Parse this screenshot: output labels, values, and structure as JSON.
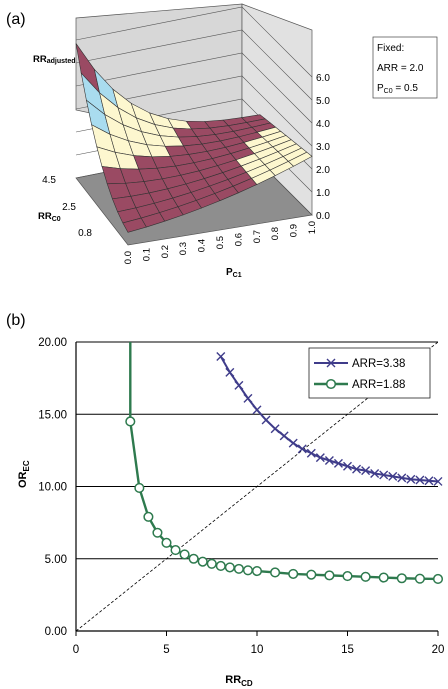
{
  "panel_a": {
    "label": "(a)",
    "z_label_main": "RR",
    "z_label_sub": "adjusted",
    "y_label_main": "RR",
    "y_label_sub": "C0",
    "x_label_main": "P",
    "x_label_sub": "C1",
    "fixed_box": {
      "title": "Fixed:",
      "line1": "ARR = 2.0",
      "line2_main": "P",
      "line2_sub": "C0",
      "line2_rest": " = 0.5"
    }
  },
  "panel_b": {
    "label": "(b)",
    "y_label_main": "OR",
    "y_label_sub": "EC",
    "x_label_main": "RR",
    "x_label_sub": "CD"
  },
  "chart_data": [
    {
      "type": "surface",
      "z_ticks": [
        "0.0",
        "1.0",
        "2.0",
        "3.0",
        "4.0",
        "5.0",
        "6.0"
      ],
      "zlim": [
        0,
        6
      ],
      "y_ticks": [
        "0.8",
        "2.5",
        "4.5"
      ],
      "x_ticks": [
        "0.0",
        "0.1",
        "0.2",
        "0.3",
        "0.4",
        "0.5",
        "0.6",
        "0.7",
        "0.8",
        "0.9",
        "1.0"
      ],
      "colors": {
        "high": "#9a4a63",
        "mid": "#fdf7cf",
        "low": "#a9dcef",
        "floor": "#8e8e8e",
        "wall": "#d7d7d7"
      }
    },
    {
      "type": "line",
      "xlim": [
        0,
        20
      ],
      "ylim": [
        0,
        20
      ],
      "x_ticks": [
        "0",
        "5",
        "10",
        "15",
        "20"
      ],
      "y_ticks": [
        "0.00",
        "5.00",
        "10.00",
        "15.00",
        "20.00"
      ],
      "reference_line": "y = x",
      "legend_position": "top-right",
      "series": [
        {
          "name": "ARR=3.38",
          "marker": "x",
          "color": "#3f3c8a",
          "x": [
            8.0,
            8.5,
            9.0,
            9.5,
            10.0,
            10.5,
            11.0,
            11.5,
            12.0,
            12.5,
            13.0,
            13.5,
            14.0,
            14.5,
            15.0,
            15.5,
            16.0,
            16.5,
            17.0,
            17.5,
            18.0,
            18.5,
            19.0,
            19.5,
            20.0
          ],
          "y": [
            19.0,
            17.9,
            17.0,
            16.1,
            15.3,
            14.6,
            14.0,
            13.5,
            13.0,
            12.6,
            12.3,
            12.0,
            11.8,
            11.6,
            11.4,
            11.2,
            11.1,
            10.9,
            10.8,
            10.7,
            10.6,
            10.5,
            10.45,
            10.4,
            10.35
          ]
        },
        {
          "name": "ARR=1.88",
          "marker": "o",
          "color": "#2e7a4e",
          "x": [
            3.0,
            3.5,
            4.0,
            4.5,
            5.0,
            5.5,
            6.0,
            6.5,
            7.0,
            7.5,
            8.0,
            8.5,
            9.0,
            9.5,
            10.0,
            11.0,
            12.0,
            13.0,
            14.0,
            15.0,
            16.0,
            17.0,
            18.0,
            19.0,
            20.0
          ],
          "y": [
            14.5,
            9.9,
            7.9,
            6.8,
            6.1,
            5.6,
            5.3,
            5.0,
            4.8,
            4.65,
            4.5,
            4.4,
            4.3,
            4.2,
            4.15,
            4.05,
            3.95,
            3.9,
            3.85,
            3.8,
            3.75,
            3.7,
            3.65,
            3.62,
            3.6
          ]
        }
      ]
    }
  ]
}
